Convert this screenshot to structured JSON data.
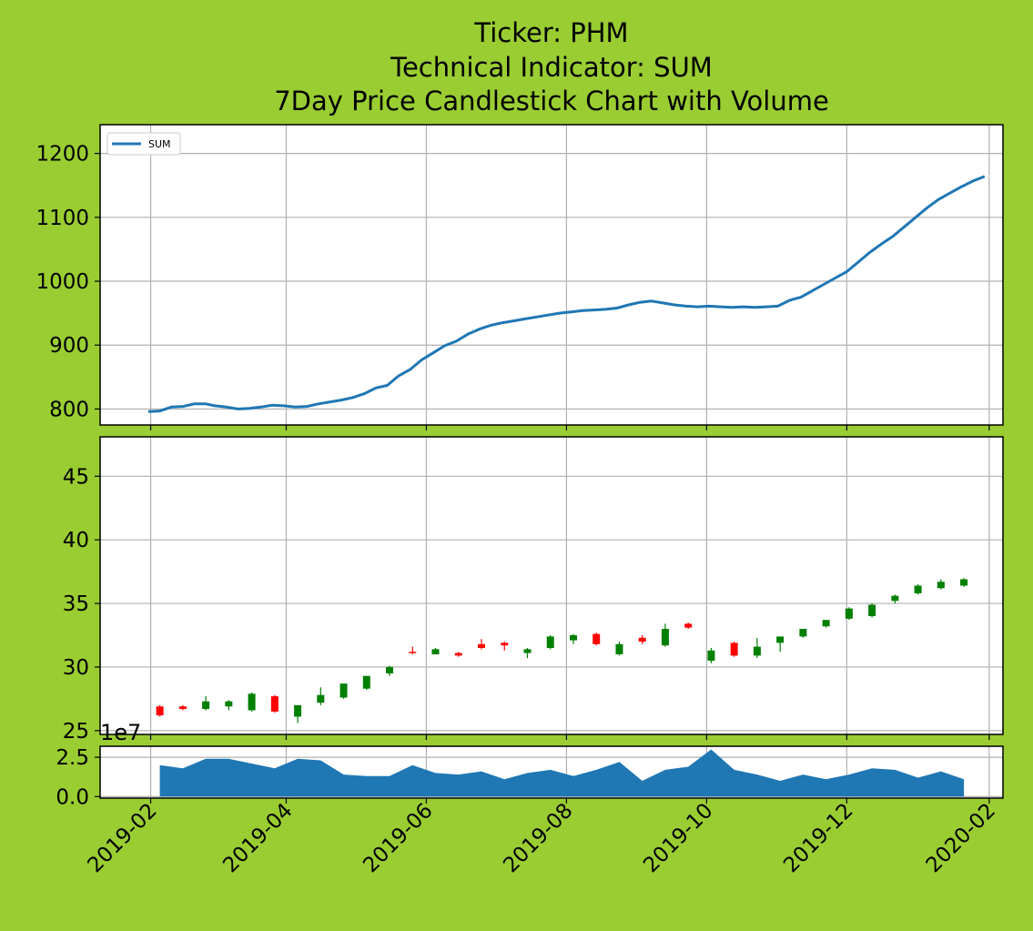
{
  "chart_data": [
    {
      "panel": "indicator",
      "type": "line",
      "title_lines": [
        "Ticker: PHM",
        "Technical Indicator: SUM",
        "7Day Price Candlestick Chart with Volume"
      ],
      "legend": {
        "label": "SUM",
        "placement": "upper-left"
      },
      "grid": true,
      "xlim": [
        "2019-01-10",
        "2020-02-07"
      ],
      "ylim": [
        775,
        1245
      ],
      "yticks": [
        800,
        900,
        1000,
        1100,
        1200
      ],
      "series": [
        {
          "color": "#1f77b4",
          "points": [
            [
              "2019-01-31",
              796
            ],
            [
              "2019-02-05",
              797
            ],
            [
              "2019-02-10",
              803
            ],
            [
              "2019-02-15",
              804
            ],
            [
              "2019-02-20",
              808
            ],
            [
              "2019-02-25",
              808
            ],
            [
              "2019-03-01",
              805
            ],
            [
              "2019-03-06",
              803
            ],
            [
              "2019-03-11",
              800
            ],
            [
              "2019-03-16",
              801
            ],
            [
              "2019-03-21",
              803
            ],
            [
              "2019-03-26",
              806
            ],
            [
              "2019-03-31",
              805
            ],
            [
              "2019-04-05",
              803
            ],
            [
              "2019-04-10",
              804
            ],
            [
              "2019-04-15",
              808
            ],
            [
              "2019-04-20",
              811
            ],
            [
              "2019-04-25",
              814
            ],
            [
              "2019-04-30",
              818
            ],
            [
              "2019-05-05",
              824
            ],
            [
              "2019-05-10",
              833
            ],
            [
              "2019-05-15",
              837
            ],
            [
              "2019-05-20",
              852
            ],
            [
              "2019-05-25",
              862
            ],
            [
              "2019-05-30",
              877
            ],
            [
              "2019-06-04",
              888
            ],
            [
              "2019-06-09",
              899
            ],
            [
              "2019-06-14",
              906
            ],
            [
              "2019-06-19",
              917
            ],
            [
              "2019-06-24",
              925
            ],
            [
              "2019-06-29",
              931
            ],
            [
              "2019-07-04",
              935
            ],
            [
              "2019-07-09",
              938
            ],
            [
              "2019-07-14",
              941
            ],
            [
              "2019-07-19",
              944
            ],
            [
              "2019-07-24",
              947
            ],
            [
              "2019-07-29",
              950
            ],
            [
              "2019-08-03",
              952
            ],
            [
              "2019-08-08",
              954
            ],
            [
              "2019-08-13",
              955
            ],
            [
              "2019-08-18",
              956
            ],
            [
              "2019-08-23",
              958
            ],
            [
              "2019-08-28",
              963
            ],
            [
              "2019-09-02",
              967
            ],
            [
              "2019-09-07",
              969
            ],
            [
              "2019-09-12",
              966
            ],
            [
              "2019-09-17",
              963
            ],
            [
              "2019-09-22",
              961
            ],
            [
              "2019-09-27",
              960
            ],
            [
              "2019-10-02",
              961
            ],
            [
              "2019-10-07",
              960
            ],
            [
              "2019-10-12",
              959
            ],
            [
              "2019-10-17",
              960
            ],
            [
              "2019-10-22",
              959
            ],
            [
              "2019-10-27",
              960
            ],
            [
              "2019-11-01",
              961
            ],
            [
              "2019-11-06",
              970
            ],
            [
              "2019-11-11",
              975
            ],
            [
              "2019-11-16",
              985
            ],
            [
              "2019-11-21",
              995
            ],
            [
              "2019-11-26",
              1005
            ],
            [
              "2019-12-01",
              1015
            ],
            [
              "2019-12-06",
              1030
            ],
            [
              "2019-12-11",
              1045
            ],
            [
              "2019-12-16",
              1058
            ],
            [
              "2019-12-21",
              1070
            ],
            [
              "2019-12-26",
              1085
            ],
            [
              "2019-12-31",
              1100
            ],
            [
              "2020-01-05",
              1115
            ],
            [
              "2020-01-10",
              1128
            ],
            [
              "2020-01-15",
              1138
            ],
            [
              "2020-01-20",
              1148
            ],
            [
              "2020-01-25",
              1157
            ],
            [
              "2020-01-30",
              1164
            ]
          ]
        }
      ]
    },
    {
      "panel": "price",
      "type": "candlestick",
      "grid": true,
      "xlim": [
        "2019-01-10",
        "2020-02-07"
      ],
      "ylim": [
        24.7,
        48.1
      ],
      "yticks": [
        25,
        30,
        35,
        40,
        45
      ],
      "up_color": "#008000",
      "down_color": "#ff0000",
      "candles": [
        {
          "date": "2019-02-05",
          "open": 26.9,
          "high": 27.0,
          "low": 26.1,
          "close": 26.2
        },
        {
          "date": "2019-02-15",
          "open": 26.9,
          "high": 27.0,
          "low": 26.6,
          "close": 26.7
        },
        {
          "date": "2019-02-25",
          "open": 26.7,
          "high": 27.7,
          "low": 26.6,
          "close": 27.3
        },
        {
          "date": "2019-03-07",
          "open": 26.9,
          "high": 27.4,
          "low": 26.6,
          "close": 27.3
        },
        {
          "date": "2019-03-17",
          "open": 26.6,
          "high": 28.0,
          "low": 26.5,
          "close": 27.9
        },
        {
          "date": "2019-03-27",
          "open": 27.7,
          "high": 27.8,
          "low": 26.4,
          "close": 26.5
        },
        {
          "date": "2019-04-06",
          "open": 26.1,
          "high": 27.0,
          "low": 25.6,
          "close": 27.0
        },
        {
          "date": "2019-04-16",
          "open": 27.2,
          "high": 28.4,
          "low": 27.0,
          "close": 27.8
        },
        {
          "date": "2019-04-26",
          "open": 27.6,
          "high": 28.6,
          "low": 27.5,
          "close": 28.7
        },
        {
          "date": "2019-05-06",
          "open": 28.3,
          "high": 29.3,
          "low": 28.2,
          "close": 29.3
        },
        {
          "date": "2019-05-16",
          "open": 29.5,
          "high": 30.1,
          "low": 29.3,
          "close": 30.0
        },
        {
          "date": "2019-05-26",
          "open": 31.2,
          "high": 31.6,
          "low": 31.0,
          "close": 31.1
        },
        {
          "date": "2019-06-05",
          "open": 31.0,
          "high": 31.5,
          "low": 31.0,
          "close": 31.4
        },
        {
          "date": "2019-06-15",
          "open": 31.1,
          "high": 31.2,
          "low": 30.8,
          "close": 30.9
        },
        {
          "date": "2019-06-25",
          "open": 31.8,
          "high": 32.2,
          "low": 31.4,
          "close": 31.5
        },
        {
          "date": "2019-07-05",
          "open": 31.9,
          "high": 32.0,
          "low": 31.3,
          "close": 31.7
        },
        {
          "date": "2019-07-15",
          "open": 31.1,
          "high": 31.5,
          "low": 30.7,
          "close": 31.4
        },
        {
          "date": "2019-07-25",
          "open": 31.5,
          "high": 32.5,
          "low": 31.4,
          "close": 32.4
        },
        {
          "date": "2019-08-04",
          "open": 32.1,
          "high": 32.6,
          "low": 31.8,
          "close": 32.5
        },
        {
          "date": "2019-08-14",
          "open": 32.6,
          "high": 32.7,
          "low": 31.7,
          "close": 31.8
        },
        {
          "date": "2019-08-24",
          "open": 31.0,
          "high": 32.0,
          "low": 30.9,
          "close": 31.8
        },
        {
          "date": "2019-09-03",
          "open": 32.3,
          "high": 32.5,
          "low": 31.8,
          "close": 32.0
        },
        {
          "date": "2019-09-13",
          "open": 31.7,
          "high": 33.4,
          "low": 31.6,
          "close": 33.0
        },
        {
          "date": "2019-09-23",
          "open": 33.4,
          "high": 33.5,
          "low": 33.0,
          "close": 33.1
        },
        {
          "date": "2019-10-03",
          "open": 30.5,
          "high": 31.5,
          "low": 30.3,
          "close": 31.3
        },
        {
          "date": "2019-10-13",
          "open": 31.9,
          "high": 32.0,
          "low": 30.8,
          "close": 30.9
        },
        {
          "date": "2019-10-23",
          "open": 30.9,
          "high": 32.3,
          "low": 30.7,
          "close": 31.6
        },
        {
          "date": "2019-11-02",
          "open": 31.9,
          "high": 32.4,
          "low": 31.2,
          "close": 32.4
        },
        {
          "date": "2019-11-12",
          "open": 32.4,
          "high": 33.0,
          "low": 32.3,
          "close": 33.0
        },
        {
          "date": "2019-11-22",
          "open": 33.2,
          "high": 33.7,
          "low": 33.1,
          "close": 33.7
        },
        {
          "date": "2019-12-02",
          "open": 33.8,
          "high": 34.7,
          "low": 33.7,
          "close": 34.6
        },
        {
          "date": "2019-12-12",
          "open": 34.0,
          "high": 35.0,
          "low": 33.9,
          "close": 34.9
        },
        {
          "date": "2019-12-22",
          "open": 35.2,
          "high": 35.7,
          "low": 35.0,
          "close": 35.6
        },
        {
          "date": "2020-01-01",
          "open": 35.8,
          "high": 36.5,
          "low": 35.7,
          "close": 36.4
        },
        {
          "date": "2020-01-11",
          "open": 36.2,
          "high": 36.9,
          "low": 36.1,
          "close": 36.7
        },
        {
          "date": "2020-01-21",
          "open": 36.4,
          "high": 37.0,
          "low": 36.3,
          "close": 36.9
        }
      ]
    },
    {
      "panel": "volume",
      "type": "area",
      "grid": true,
      "offset_label": "1e7",
      "xlim": [
        "2019-01-10",
        "2020-02-07"
      ],
      "ylim": [
        -0.1,
        3.2
      ],
      "yticks": [
        "0.0",
        "2.5"
      ],
      "xticks": [
        "2019-02",
        "2019-04",
        "2019-06",
        "2019-08",
        "2019-10",
        "2019-12",
        "2020-02"
      ],
      "series": [
        {
          "color": "#1f77b4",
          "points": [
            [
              "2019-02-05",
              2.0
            ],
            [
              "2019-02-15",
              1.8
            ],
            [
              "2019-02-25",
              2.4
            ],
            [
              "2019-03-07",
              2.4
            ],
            [
              "2019-03-17",
              2.1
            ],
            [
              "2019-03-27",
              1.8
            ],
            [
              "2019-04-06",
              2.4
            ],
            [
              "2019-04-16",
              2.3
            ],
            [
              "2019-04-26",
              1.4
            ],
            [
              "2019-05-06",
              1.3
            ],
            [
              "2019-05-16",
              1.3
            ],
            [
              "2019-05-26",
              2.0
            ],
            [
              "2019-06-05",
              1.5
            ],
            [
              "2019-06-15",
              1.4
            ],
            [
              "2019-06-25",
              1.6
            ],
            [
              "2019-07-05",
              1.1
            ],
            [
              "2019-07-15",
              1.5
            ],
            [
              "2019-07-25",
              1.7
            ],
            [
              "2019-08-04",
              1.3
            ],
            [
              "2019-08-14",
              1.7
            ],
            [
              "2019-08-24",
              2.2
            ],
            [
              "2019-09-03",
              1.0
            ],
            [
              "2019-09-13",
              1.7
            ],
            [
              "2019-09-23",
              1.9
            ],
            [
              "2019-10-03",
              3.0
            ],
            [
              "2019-10-13",
              1.7
            ],
            [
              "2019-10-23",
              1.4
            ],
            [
              "2019-11-02",
              1.0
            ],
            [
              "2019-11-12",
              1.4
            ],
            [
              "2019-11-22",
              1.1
            ],
            [
              "2019-12-02",
              1.4
            ],
            [
              "2019-12-12",
              1.8
            ],
            [
              "2019-12-22",
              1.7
            ],
            [
              "2020-01-01",
              1.2
            ],
            [
              "2020-01-11",
              1.6
            ],
            [
              "2020-01-21",
              1.1
            ]
          ]
        }
      ]
    }
  ]
}
